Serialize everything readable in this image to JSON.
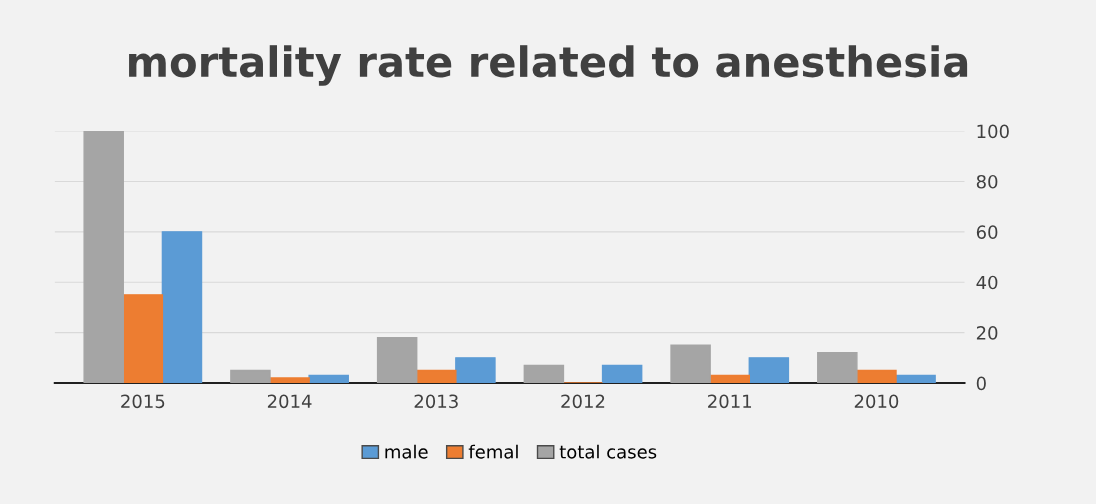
{
  "chart_data": {
    "type": "bar",
    "title": "mortality rate related to anesthesia",
    "categories": [
      "2015",
      "2014",
      "2013",
      "2012",
      "2011",
      "2010"
    ],
    "series": [
      {
        "name": "male",
        "color": "#5b9bd5",
        "values": [
          60,
          3,
          10,
          7,
          10,
          3
        ]
      },
      {
        "name": "femal",
        "color": "#ed7d31",
        "values": [
          35,
          2,
          5,
          0,
          3,
          5
        ]
      },
      {
        "name": "total cases",
        "color": "#a5a5a5",
        "values": [
          100,
          5,
          18,
          7,
          15,
          12
        ]
      }
    ],
    "ylim": [
      0,
      100
    ],
    "yticks": [
      0,
      20,
      40,
      60,
      80,
      100
    ],
    "grid": "y",
    "legend": "bottom"
  }
}
